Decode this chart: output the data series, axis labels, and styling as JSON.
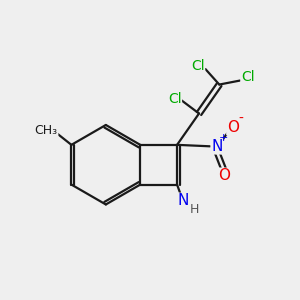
{
  "background_color": "#efefef",
  "bond_color": "#1a1a1a",
  "bond_width": 1.6,
  "cl_color": "#00aa00",
  "n_color": "#0000ee",
  "o_color": "#ee0000",
  "h_color": "#555555",
  "fs": 10,
  "figsize": [
    3.0,
    3.0
  ],
  "dpi": 100,
  "xlim": [
    0,
    10
  ],
  "ylim": [
    0,
    10
  ]
}
